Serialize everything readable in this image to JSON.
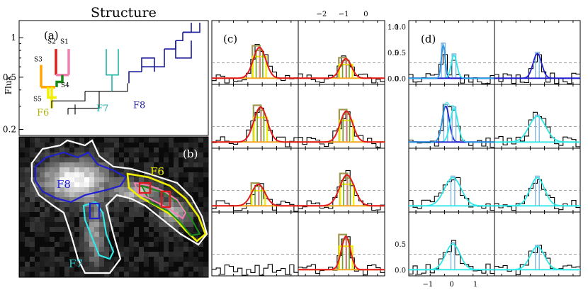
{
  "colors": {
    "S1": "#f080b0",
    "S2": "#e31a1c",
    "S3": "#ffa500",
    "S4": "#1a8a1a",
    "S5": "#f0f000",
    "F6": "#b0b010",
    "F7": "#20b2aa",
    "F8": "#1a1a9a",
    "fit_red": "#e31a1c",
    "fit_orange": "#f5a623",
    "fit_olive": "#a09850",
    "fit_yellow": "#f0f000",
    "fit_green": "#6fa020",
    "fit_pink": "#f080b0",
    "d_blue": "#2020d0",
    "d_cyan": "#30e8e8",
    "d_lightblue": "#80b8e0",
    "hist": "#000000",
    "dashed": "#999999"
  },
  "panel_a": {
    "title": "Structure",
    "label": "(a)",
    "ylabel": "Flux",
    "yticks": [
      "1",
      "0.5",
      "0.2"
    ],
    "scale": "log",
    "ylim": [
      0.18,
      1.35
    ],
    "leaf_labels": [
      "S1",
      "S2",
      "S3",
      "S4",
      "S5",
      "F6",
      "F7",
      "F8"
    ]
  },
  "panel_b": {
    "label": "(b)",
    "labels": [
      "F8",
      "F6",
      "F7"
    ]
  },
  "panel_c": {
    "label": "(c)",
    "top_ticks": [
      "−2",
      "−1",
      "0"
    ],
    "top_tick_values": [
      -2,
      -1,
      0
    ],
    "xlim": [
      -3.05,
      0.85
    ],
    "right_ticks": [
      "1.0",
      "0.5",
      "0.0"
    ],
    "right_tick_values": [
      1.0,
      0.5,
      0.0
    ],
    "ylim": [
      -0.12,
      1.12
    ]
  },
  "panel_d": {
    "label": "(d)",
    "bottom_ticks": [
      "−1",
      "0",
      "1"
    ],
    "bottom_tick_values": [
      -1,
      0,
      1
    ],
    "xlim": [
      -1.8,
      1.8
    ],
    "top_row_right_ticks": [
      "1.0",
      "0.5",
      "0.0"
    ],
    "bottom_row_left_ticks": [
      "0.5",
      "0.0"
    ],
    "ylim": [
      -0.12,
      1.12
    ]
  },
  "chart_data": [
    {
      "type": "dendrogram",
      "panel": "a",
      "leaves": [
        "S3",
        "S5",
        "S4",
        "S2",
        "S1",
        "F6",
        "F7",
        "F8"
      ],
      "ylabel": "Flux",
      "yscale": "log"
    },
    {
      "type": "image",
      "panel": "b",
      "contour_labels": [
        "F8",
        "F6",
        "F7"
      ]
    },
    {
      "type": "line",
      "panel": "c",
      "rows": 4,
      "cols": 2,
      "fits": [
        {
          "amp": 0.6,
          "mu": -0.9,
          "sigma": 0.28
        },
        {
          "amp": 0.38,
          "mu": -0.9,
          "sigma": 0.25
        },
        {
          "amp": 0.68,
          "mu": -0.85,
          "sigma": 0.3
        },
        {
          "amp": 0.6,
          "mu": -0.88,
          "sigma": 0.28
        },
        {
          "amp": 0.42,
          "mu": -0.95,
          "sigma": 0.3
        },
        {
          "amp": 0.6,
          "mu": -0.85,
          "sigma": 0.33
        },
        null,
        {
          "amp": 0.65,
          "mu": -0.9,
          "sigma": 0.2
        }
      ]
    },
    {
      "type": "line",
      "panel": "d",
      "rows": 4,
      "cols": 2,
      "fits": [
        {
          "components": [
            {
              "amp": 0.65,
              "mu": -0.35,
              "sigma": 0.08,
              "c": "blue"
            },
            {
              "amp": 0.45,
              "mu": 0.1,
              "sigma": 0.12,
              "c": "cyan"
            }
          ]
        },
        {
          "components": [
            {
              "amp": 0.48,
              "mu": 0.0,
              "sigma": 0.18,
              "c": "blue"
            }
          ]
        },
        {
          "components": [
            {
              "amp": 0.7,
              "mu": -0.25,
              "sigma": 0.15,
              "c": "blue"
            },
            {
              "amp": 0.65,
              "mu": 0.1,
              "sigma": 0.16,
              "c": "cyan"
            }
          ]
        },
        {
          "components": [
            {
              "amp": 0.5,
              "mu": 0.0,
              "sigma": 0.35,
              "c": "cyan"
            }
          ]
        },
        {
          "components": [
            {
              "amp": 0.55,
              "mu": 0.05,
              "sigma": 0.35,
              "c": "cyan"
            }
          ]
        },
        {
          "components": [
            {
              "amp": 0.55,
              "mu": 0.0,
              "sigma": 0.3,
              "c": "cyan"
            }
          ]
        },
        {
          "components": [
            {
              "amp": 0.5,
              "mu": 0.05,
              "sigma": 0.3,
              "c": "cyan"
            }
          ]
        },
        {
          "components": [
            {
              "amp": 0.45,
              "mu": 0.0,
              "sigma": 0.3,
              "c": "cyan"
            }
          ]
        }
      ]
    }
  ]
}
